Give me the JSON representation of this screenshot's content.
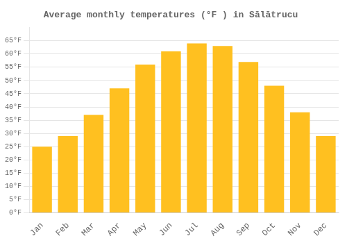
{
  "chart_data": {
    "type": "bar",
    "title": "Average monthly temperatures (°F ) in Sălătrucu",
    "categories": [
      "Jan",
      "Feb",
      "Mar",
      "Apr",
      "May",
      "Jun",
      "Jul",
      "Aug",
      "Sep",
      "Oct",
      "Nov",
      "Dec"
    ],
    "values": [
      25,
      29,
      37,
      47,
      56,
      61,
      64,
      63,
      57,
      48,
      38,
      29
    ],
    "color": "#FFC020",
    "ylim": [
      0,
      70
    ],
    "yticks": [
      {
        "value": 0,
        "label": "0°F"
      },
      {
        "value": 5,
        "label": "5°F"
      },
      {
        "value": 10,
        "label": "10°F"
      },
      {
        "value": 15,
        "label": "15°F"
      },
      {
        "value": 20,
        "label": "20°F"
      },
      {
        "value": 25,
        "label": "25°F"
      },
      {
        "value": 30,
        "label": "30°F"
      },
      {
        "value": 35,
        "label": "35°F"
      },
      {
        "value": 40,
        "label": "40°F"
      },
      {
        "value": 45,
        "label": "45°F"
      },
      {
        "value": 50,
        "label": "50°F"
      },
      {
        "value": 55,
        "label": "55°F"
      },
      {
        "value": 60,
        "label": "60°F"
      },
      {
        "value": 65,
        "label": "65°F"
      }
    ],
    "grid": true
  }
}
